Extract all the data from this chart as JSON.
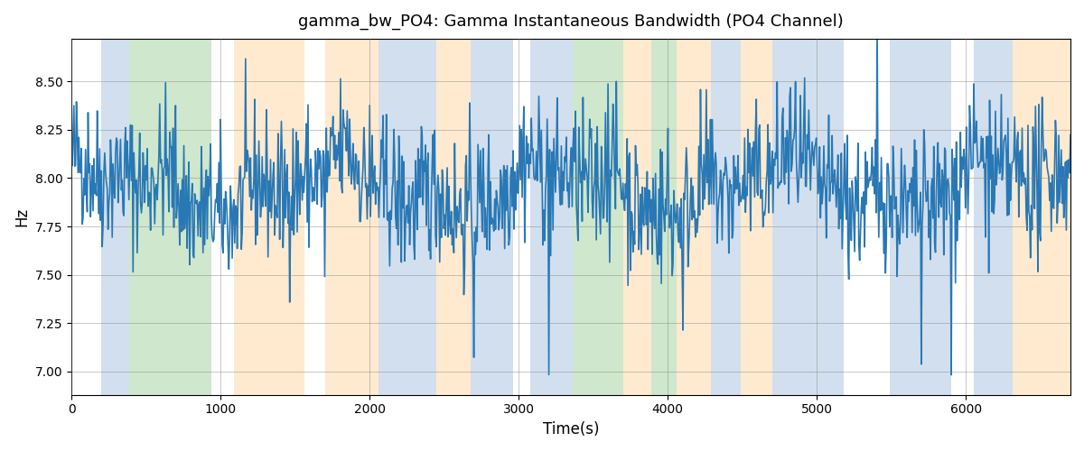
{
  "title": "gamma_bw_PO4: Gamma Instantaneous Bandwidth (PO4 Channel)",
  "xlabel": "Time(s)",
  "ylabel": "Hz",
  "xlim": [
    0,
    6700
  ],
  "ylim": [
    6.88,
    8.72
  ],
  "line_color": "#2878b5",
  "line_width": 1.2,
  "seed": 42,
  "n_points": 1200,
  "base_mean": 7.95,
  "base_std": 0.18,
  "colored_bands": [
    {
      "xmin": 200,
      "xmax": 385,
      "color": "#aec6e0",
      "alpha": 0.55
    },
    {
      "xmin": 385,
      "xmax": 940,
      "color": "#a8d5a2",
      "alpha": 0.55
    },
    {
      "xmin": 1090,
      "xmax": 1560,
      "color": "#ffd9a8",
      "alpha": 0.55
    },
    {
      "xmin": 1700,
      "xmax": 2060,
      "color": "#ffd9a8",
      "alpha": 0.55
    },
    {
      "xmin": 2060,
      "xmax": 2450,
      "color": "#aec6e0",
      "alpha": 0.55
    },
    {
      "xmin": 2450,
      "xmax": 2680,
      "color": "#ffd9a8",
      "alpha": 0.55
    },
    {
      "xmin": 2680,
      "xmax": 2960,
      "color": "#aec6e0",
      "alpha": 0.55
    },
    {
      "xmin": 3080,
      "xmax": 3360,
      "color": "#aec6e0",
      "alpha": 0.55
    },
    {
      "xmin": 3360,
      "xmax": 3700,
      "color": "#a8d5a2",
      "alpha": 0.55
    },
    {
      "xmin": 3700,
      "xmax": 3890,
      "color": "#ffd9a8",
      "alpha": 0.55
    },
    {
      "xmin": 3890,
      "xmax": 4060,
      "color": "#a8d5a2",
      "alpha": 0.55
    },
    {
      "xmin": 4060,
      "xmax": 4290,
      "color": "#ffd9a8",
      "alpha": 0.55
    },
    {
      "xmin": 4290,
      "xmax": 4490,
      "color": "#aec6e0",
      "alpha": 0.55
    },
    {
      "xmin": 4490,
      "xmax": 4700,
      "color": "#ffd9a8",
      "alpha": 0.55
    },
    {
      "xmin": 4700,
      "xmax": 5180,
      "color": "#aec6e0",
      "alpha": 0.55
    },
    {
      "xmin": 5490,
      "xmax": 5900,
      "color": "#aec6e0",
      "alpha": 0.55
    },
    {
      "xmin": 6050,
      "xmax": 6310,
      "color": "#aec6e0",
      "alpha": 0.55
    },
    {
      "xmin": 6310,
      "xmax": 6700,
      "color": "#ffd9a8",
      "alpha": 0.55
    }
  ],
  "title_fontsize": 13,
  "label_fontsize": 12,
  "tick_fontsize": 10,
  "figsize": [
    12.0,
    5.0
  ],
  "dpi": 100
}
